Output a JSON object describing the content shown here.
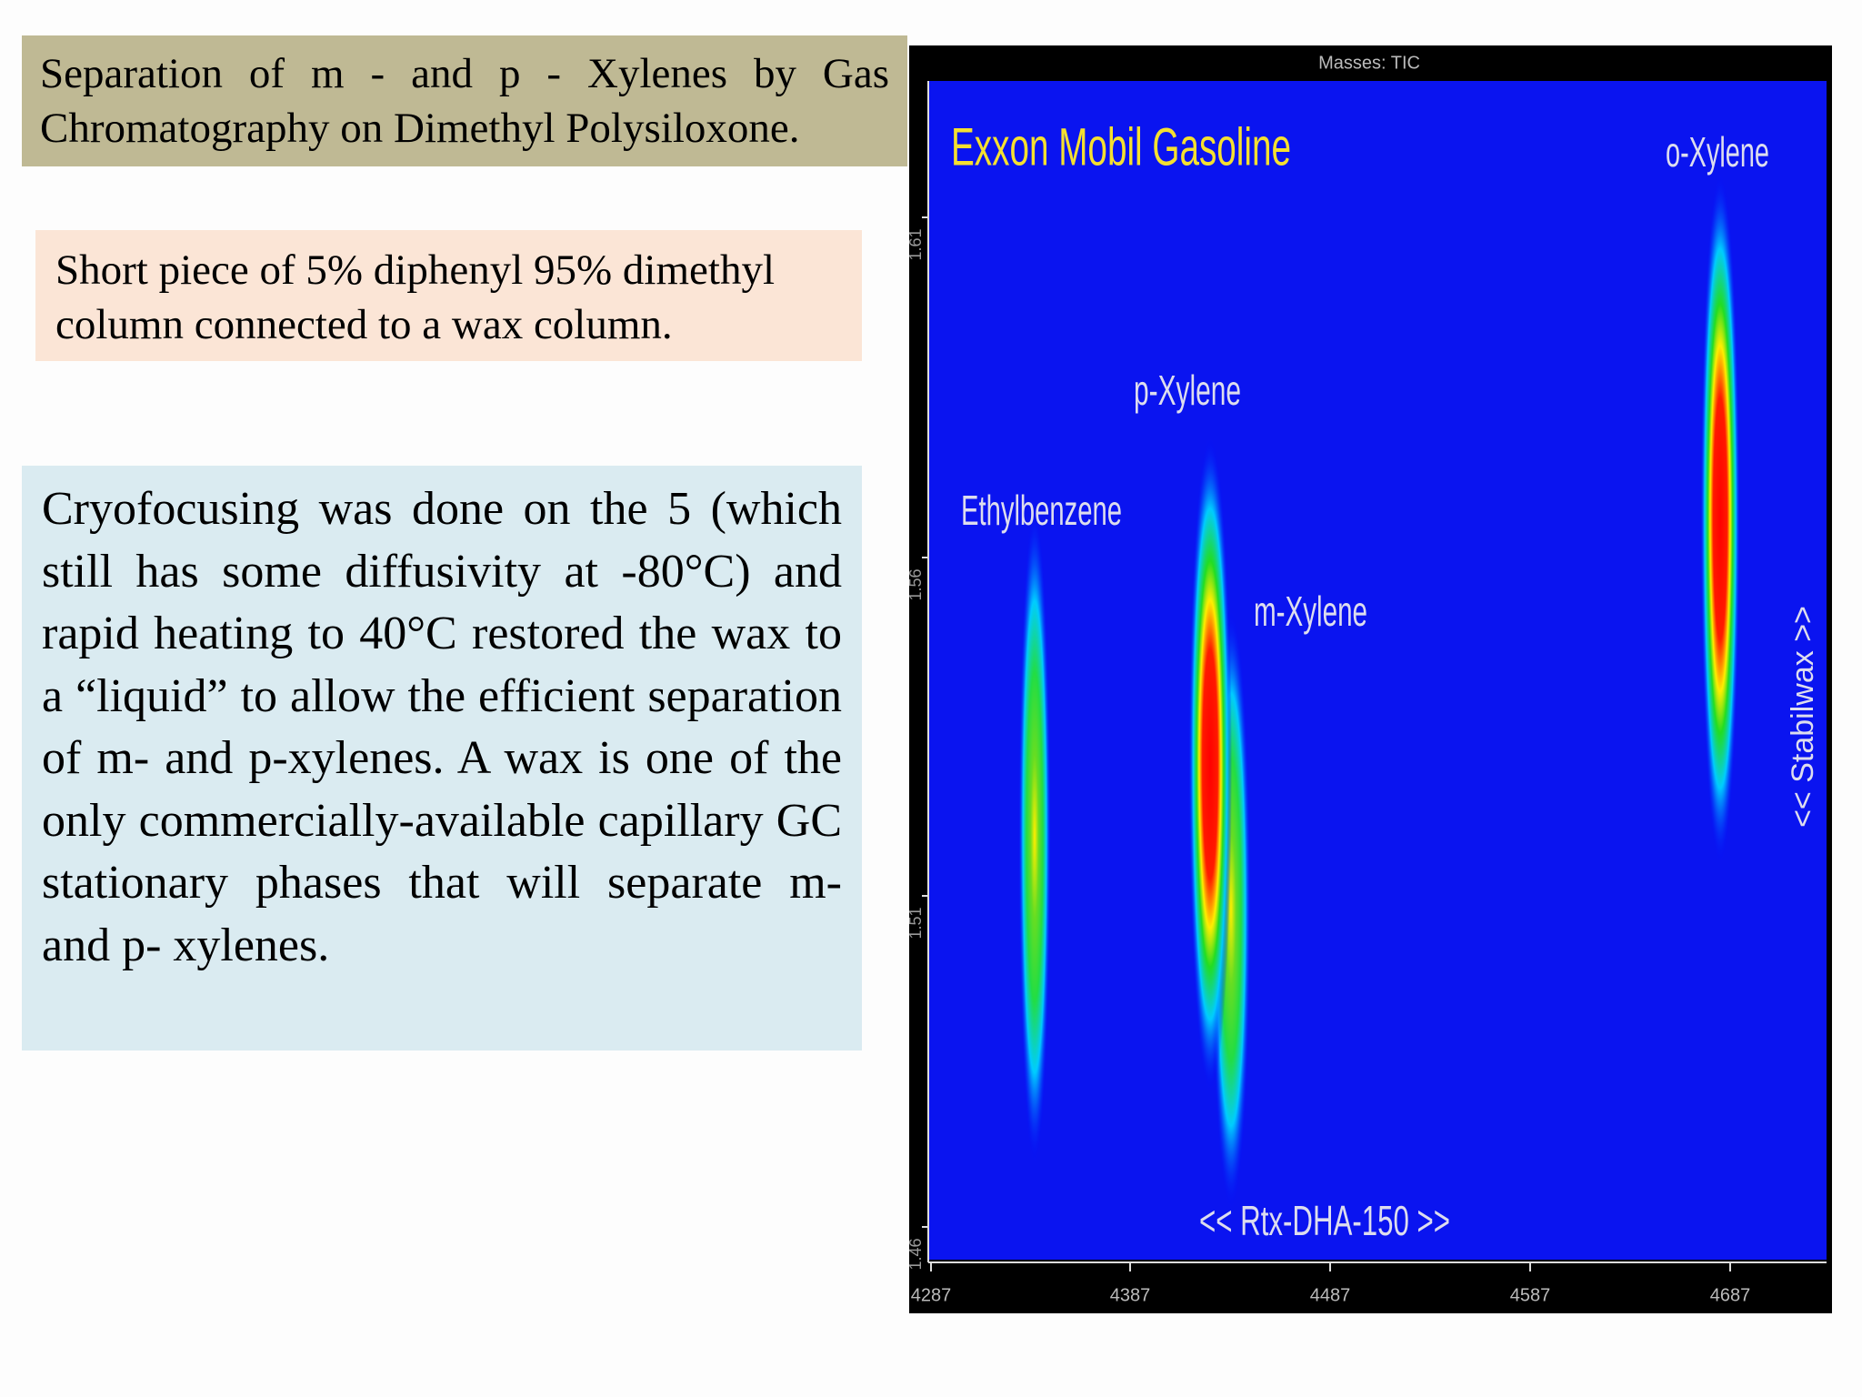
{
  "header": {
    "title": "Separation of m - and p - Xylenes by Gas Chromatography on Dimethyl Polysiloxone."
  },
  "note": "Short piece of 5% diphenyl 95% dimethyl column connected to a wax column.",
  "body": "Cryofocusing was done on the 5 (which still has some diffusivity at -80°C) and rapid heating to 40°C restored the wax to a “liquid” to allow the efficient separation of m- and p-xylenes. A wax is one of the only commercially-available capillary GC stationary phases that will separate m- and p- xylenes.",
  "figure": {
    "header": "Masses: TIC",
    "title": "Exxon Mobil Gasoline",
    "peaks": [
      {
        "label": "Ethylbenzene"
      },
      {
        "label": "p-Xylene"
      },
      {
        "label": "m-Xylene"
      },
      {
        "label": "o-Xylene"
      }
    ],
    "x_axis_label": "<< Rtx-DHA-150 >>",
    "y_axis_label": "<< Stabilwax >>",
    "x_ticks": [
      "4287",
      "4387",
      "4487",
      "4587",
      "4687"
    ],
    "y_ticks": [
      "1.46",
      "1.51",
      "1.56",
      "1.61"
    ]
  }
}
